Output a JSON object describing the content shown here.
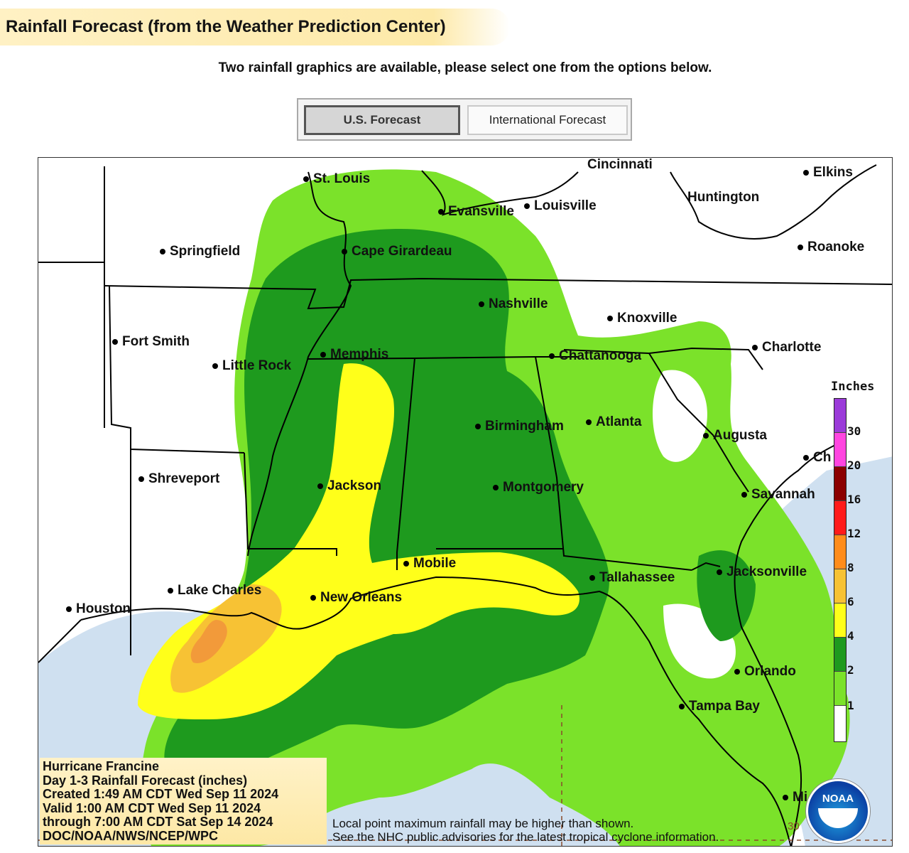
{
  "page": {
    "title": "Rainfall Forecast (from the Weather Prediction Center)",
    "subtitle": "Two rainfall graphics are available, please select one from the options below."
  },
  "tabs": [
    {
      "label": "U.S. Forecast",
      "active": true
    },
    {
      "label": "International Forecast",
      "active": false
    }
  ],
  "map": {
    "cities": [
      "St. Louis",
      "Evansville",
      "Louisville",
      "Cincinnati",
      "Huntington",
      "Elkins",
      "Roanoke",
      "Springfield",
      "Cape Girardeau",
      "Nashville",
      "Knoxville",
      "Charlotte",
      "Fort Smith",
      "Little Rock",
      "Memphis",
      "Chattanooga",
      "Birmingham",
      "Atlanta",
      "Augusta",
      "Shreveport",
      "Jackson",
      "Montgomery",
      "Savannah",
      "Ch",
      "Mobile",
      "Tallahassee",
      "Jacksonville",
      "Lake Charles",
      "New Orleans",
      "Houston",
      "Orlando",
      "Tampa Bay",
      "Mi"
    ],
    "legend": {
      "title": "Inches",
      "ticks": [
        "30",
        "20",
        "16",
        "12",
        "8",
        "6",
        "4",
        "2",
        "1"
      ],
      "colors": [
        "#9b3bd9",
        "#ff45e0",
        "#8b0000",
        "#ff1a1a",
        "#ff8c1a",
        "#f7c234",
        "#ffff1a",
        "#1e9a1e",
        "#7be22a",
        "#ffffff"
      ]
    },
    "info": {
      "lines": [
        "Hurricane Francine",
        "Day 1-3 Rainfall Forecast (inches)",
        "Created 1:49 AM CDT Wed Sep 11 2024",
        "Valid 1:00 AM CDT Wed Sep 11 2024",
        "through 7:00 AM CDT Sat Sep 14 2024",
        "DOC/NOAA/NWS/NCEP/WPC"
      ]
    },
    "notes": [
      "Local point maximum rainfall may be higher than shown.",
      "See the NHC public advisories for the latest tropical cyclone information."
    ],
    "latitude_label": "30",
    "logo_text": "NOAA",
    "colors": {
      "water": "#cfe0f0",
      "land": "#ffffff",
      "light_green": "#7be22a",
      "dark_green": "#1e9a1e",
      "yellow": "#ffff1a",
      "gold": "#f7c234",
      "orange": "#f29a3a"
    }
  }
}
